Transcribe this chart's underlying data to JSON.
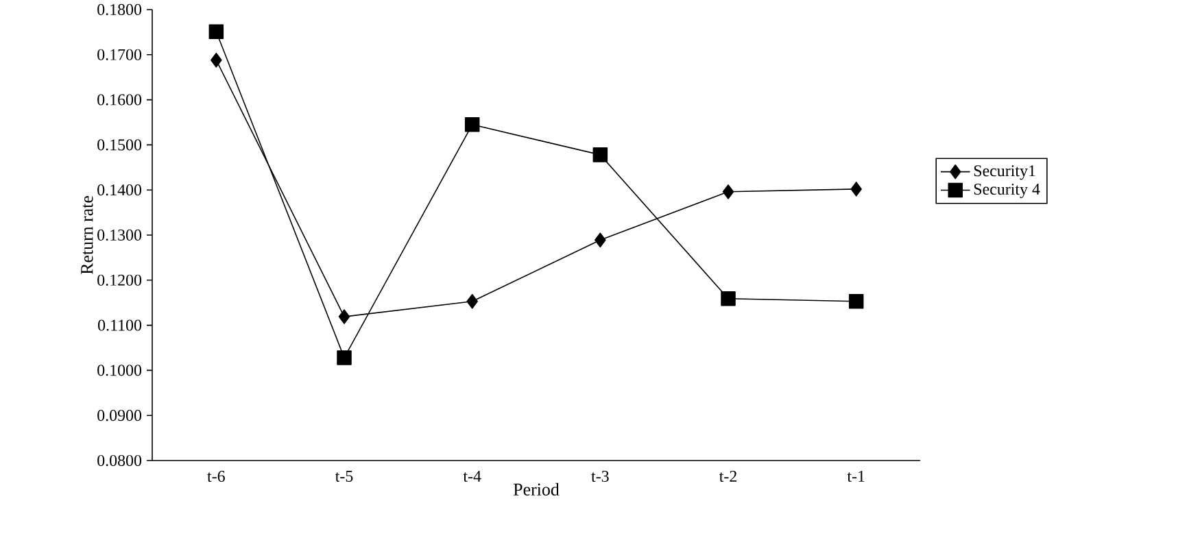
{
  "chart_data": {
    "type": "line",
    "xlabel": "Period",
    "ylabel": "Return rate",
    "categories": [
      "t-6",
      "t-5",
      "t-4",
      "t-3",
      "t-2",
      "t-1"
    ],
    "series": [
      {
        "name": "Security1",
        "color": "#000000",
        "marker": "diamond",
        "values": [
          0.1688,
          0.1119,
          0.1153,
          0.1289,
          0.1396,
          0.1402
        ]
      },
      {
        "name": "Security 4",
        "color": "#000000",
        "marker": "square",
        "values": [
          0.1751,
          0.1028,
          0.1545,
          0.1478,
          0.1159,
          0.1153
        ]
      }
    ],
    "ylim": [
      0.08,
      0.18
    ],
    "yticks": [
      {
        "value": 0.08,
        "label": "0.0800"
      },
      {
        "value": 0.09,
        "label": "0.0900"
      },
      {
        "value": 0.1,
        "label": "0.1000"
      },
      {
        "value": 0.11,
        "label": "0.1100"
      },
      {
        "value": 0.12,
        "label": "0.1200"
      },
      {
        "value": 0.13,
        "label": "0.1300"
      },
      {
        "value": 0.14,
        "label": "0.1400"
      },
      {
        "value": 0.15,
        "label": "0.1500"
      },
      {
        "value": 0.16,
        "label": "0.1600"
      },
      {
        "value": 0.17,
        "label": "0.1700"
      },
      {
        "value": 0.18,
        "label": "0.1800"
      }
    ],
    "grid": false,
    "legend": "right",
    "line_style": "solid"
  }
}
